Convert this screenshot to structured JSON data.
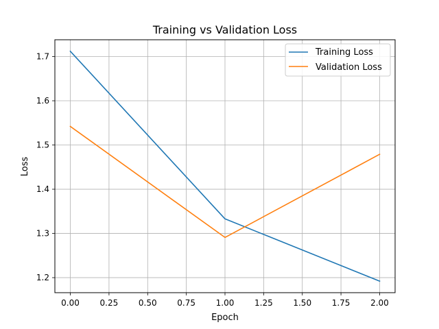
{
  "chart_data": {
    "type": "line",
    "title": "Training vs Validation Loss",
    "xlabel": "Epoch",
    "ylabel": "Loss",
    "x": [
      0.0,
      1.0,
      2.0
    ],
    "series": [
      {
        "name": "Training Loss",
        "values": [
          1.712,
          1.333,
          1.192
        ],
        "color": "#1f77b4"
      },
      {
        "name": "Validation Loss",
        "values": [
          1.542,
          1.291,
          1.479
        ],
        "color": "#ff7f0e"
      }
    ],
    "xlim": [
      -0.1,
      2.1
    ],
    "ylim": [
      1.166,
      1.738
    ],
    "xticks": [
      0.0,
      0.25,
      0.5,
      0.75,
      1.0,
      1.25,
      1.5,
      1.75,
      2.0
    ],
    "xtick_labels": [
      "0.00",
      "0.25",
      "0.50",
      "0.75",
      "1.00",
      "1.25",
      "1.50",
      "1.75",
      "2.00"
    ],
    "yticks": [
      1.2,
      1.3,
      1.4,
      1.5,
      1.6,
      1.7
    ],
    "ytick_labels": [
      "1.2",
      "1.3",
      "1.4",
      "1.5",
      "1.6",
      "1.7"
    ],
    "grid": true,
    "legend_position": "top-right"
  }
}
